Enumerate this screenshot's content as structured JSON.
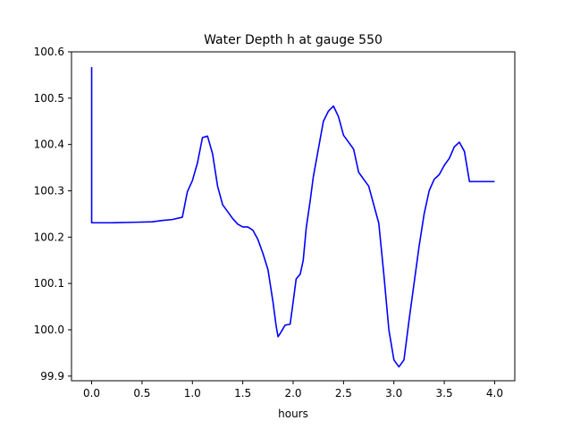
{
  "chart_data": {
    "type": "line",
    "title": "Water Depth h at gauge 550",
    "xlabel": "hours",
    "ylabel": "",
    "xlim": [
      -0.2,
      4.2
    ],
    "ylim": [
      99.89,
      100.6
    ],
    "xticks": [
      0.0,
      0.5,
      1.0,
      1.5,
      2.0,
      2.5,
      3.0,
      3.5,
      4.0
    ],
    "xtick_labels": [
      "0.0",
      "0.5",
      "1.0",
      "1.5",
      "2.0",
      "2.5",
      "3.0",
      "3.5",
      "4.0"
    ],
    "yticks": [
      99.9,
      100.0,
      100.1,
      100.2,
      100.3,
      100.4,
      100.5,
      100.6
    ],
    "ytick_labels": [
      "99.9",
      "100.0",
      "100.1",
      "100.2",
      "100.3",
      "100.4",
      "100.5",
      "100.6"
    ],
    "grid": false,
    "series": [
      {
        "color": "#0000ff",
        "x": [
          0.0,
          0.0,
          0.002,
          0.2,
          0.4,
          0.6,
          0.7,
          0.8,
          0.9,
          0.95,
          1.0,
          1.05,
          1.1,
          1.15,
          1.2,
          1.25,
          1.3,
          1.35,
          1.4,
          1.45,
          1.5,
          1.55,
          1.6,
          1.65,
          1.7,
          1.75,
          1.8,
          1.83,
          1.85,
          1.88,
          1.92,
          1.97,
          2.0,
          2.03,
          2.07,
          2.1,
          2.13,
          2.17,
          2.2,
          2.25,
          2.3,
          2.35,
          2.4,
          2.45,
          2.5,
          2.55,
          2.6,
          2.65,
          2.7,
          2.75,
          2.8,
          2.85,
          2.9,
          2.95,
          3.0,
          3.05,
          3.1,
          3.15,
          3.2,
          3.25,
          3.3,
          3.35,
          3.4,
          3.45,
          3.5,
          3.55,
          3.6,
          3.65,
          3.7,
          3.75,
          3.8,
          3.85,
          3.9,
          3.95,
          4.0
        ],
        "y": [
          100.567,
          100.231,
          100.231,
          100.231,
          100.232,
          100.233,
          100.236,
          100.238,
          100.243,
          100.298,
          100.322,
          100.36,
          100.415,
          100.418,
          100.38,
          100.31,
          100.27,
          100.255,
          100.24,
          100.228,
          100.222,
          100.222,
          100.215,
          100.195,
          100.165,
          100.13,
          100.06,
          100.01,
          99.985,
          99.995,
          100.01,
          100.012,
          100.06,
          100.11,
          100.12,
          100.15,
          100.22,
          100.28,
          100.33,
          100.39,
          100.45,
          100.472,
          100.483,
          100.46,
          100.42,
          100.405,
          100.39,
          100.34,
          100.325,
          100.31,
          100.27,
          100.23,
          100.12,
          100.0,
          99.935,
          99.92,
          99.935,
          100.02,
          100.1,
          100.18,
          100.25,
          100.3,
          100.325,
          100.335,
          100.355,
          100.37,
          100.395,
          100.405,
          100.385,
          100.32,
          100.32,
          100.32,
          100.32,
          100.32,
          100.32
        ]
      }
    ]
  }
}
